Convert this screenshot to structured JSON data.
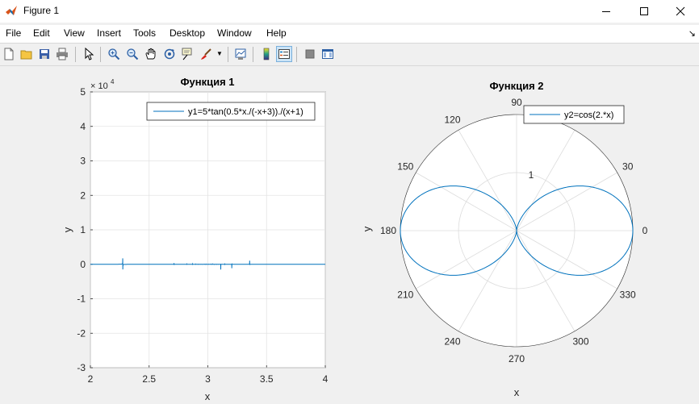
{
  "window": {
    "title": "Figure 1"
  },
  "menu": [
    "File",
    "Edit",
    "View",
    "Insert",
    "Tools",
    "Desktop",
    "Window",
    "Help"
  ],
  "toolbar_icons": [
    "new-figure-icon",
    "open-file-icon",
    "save-icon",
    "print-icon",
    "pointer-icon",
    "zoom-in-icon",
    "zoom-out-icon",
    "pan-icon",
    "rotate-3d-icon",
    "data-cursor-icon",
    "brush-icon",
    "link-plot-icon",
    "colorbar-icon",
    "legend-icon",
    "hide-plot-tools-icon",
    "show-plot-tools-icon"
  ],
  "plot1": {
    "title": "Функция 1",
    "xlabel": "x",
    "ylabel": "y",
    "exponent_base": "× 10",
    "exponent_power": "4",
    "legend": "y1=5*tan(0.5*x./(-x+3))./(x+1)",
    "color": "#0072bd"
  },
  "plot2": {
    "title": "Функция 2",
    "xlabel": "x",
    "ylabel": "y",
    "legend": "y2=cos(2.*x)",
    "color": "#0072bd"
  },
  "chart_data": [
    {
      "type": "line",
      "title": "Функция 1",
      "xlabel": "x",
      "ylabel": "y",
      "xlim": [
        2,
        4
      ],
      "ylim": [
        -3,
        5
      ],
      "y_exponent": 4,
      "x_ticks": [
        "2",
        "2.5",
        "3",
        "3.5",
        "4"
      ],
      "y_ticks": [
        "-3",
        "-2",
        "-1",
        "0",
        "1",
        "2",
        "3",
        "4",
        "5"
      ],
      "grid": true,
      "legend_position": "top-right",
      "series": [
        {
          "name": "y1=5*tan(0.5*x./(-x+3))./(x+1)",
          "function": "5*tan(0.5*x./(-x+3))./(x+1)"
        }
      ]
    },
    {
      "type": "polar",
      "title": "Функция 2",
      "xlabel": "x",
      "ylabel": "y",
      "rlim": [
        0,
        2
      ],
      "r_ticks": [
        "1",
        "2"
      ],
      "theta_ticks": [
        "0",
        "30",
        "60",
        "90",
        "120",
        "150",
        "180",
        "210",
        "240",
        "270",
        "300",
        "330"
      ],
      "grid": true,
      "legend_position": "top-right",
      "series": [
        {
          "name": "y2=cos(2.*x)",
          "r": "1+cos(2*theta) (cardioid-like shape, r from 0 to 2)"
        }
      ]
    }
  ]
}
